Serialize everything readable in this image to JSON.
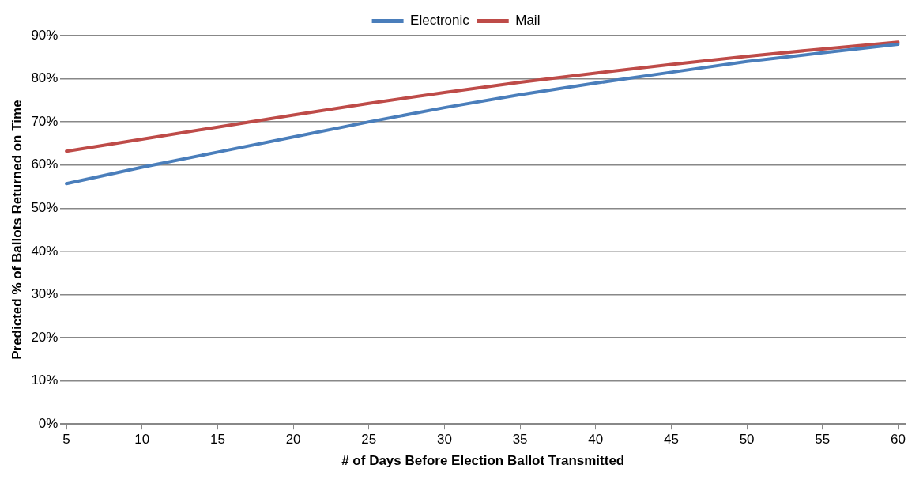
{
  "chart_data": {
    "type": "line",
    "xlabel": "# of Days Before Election Ballot Transmitted",
    "ylabel": "Predicted % of Ballots Returned on Time",
    "x": [
      5,
      10,
      15,
      20,
      25,
      30,
      35,
      40,
      45,
      50,
      55,
      60
    ],
    "series": [
      {
        "name": "Electronic",
        "color": "#4a7ebb",
        "values": [
          55.7,
          59.5,
          63,
          66.5,
          70,
          73.3,
          76.3,
          79,
          81.5,
          84,
          86,
          88
        ]
      },
      {
        "name": "Mail",
        "color": "#be4b48",
        "values": [
          63.2,
          66,
          68.8,
          71.6,
          74.3,
          76.8,
          79.2,
          81.3,
          83.3,
          85.2,
          86.9,
          88.5
        ]
      }
    ],
    "xlim": [
      4.6,
      60.5
    ],
    "xticks": [
      5,
      10,
      15,
      20,
      25,
      30,
      35,
      40,
      45,
      50,
      55,
      60
    ],
    "ylim": [
      0,
      90
    ],
    "yticks": [
      {
        "value": 0,
        "label": "0%"
      },
      {
        "value": 10,
        "label": "10%"
      },
      {
        "value": 20,
        "label": "20%"
      },
      {
        "value": 30,
        "label": "30%"
      },
      {
        "value": 40,
        "label": "40%"
      },
      {
        "value": 50,
        "label": "50%"
      },
      {
        "value": 60,
        "label": "60%"
      },
      {
        "value": 70,
        "label": "70%"
      },
      {
        "value": 80,
        "label": "80%"
      },
      {
        "value": 90,
        "label": "90%"
      }
    ],
    "grid": "y",
    "legend": "top",
    "marker": "none",
    "line_style": "solid"
  }
}
